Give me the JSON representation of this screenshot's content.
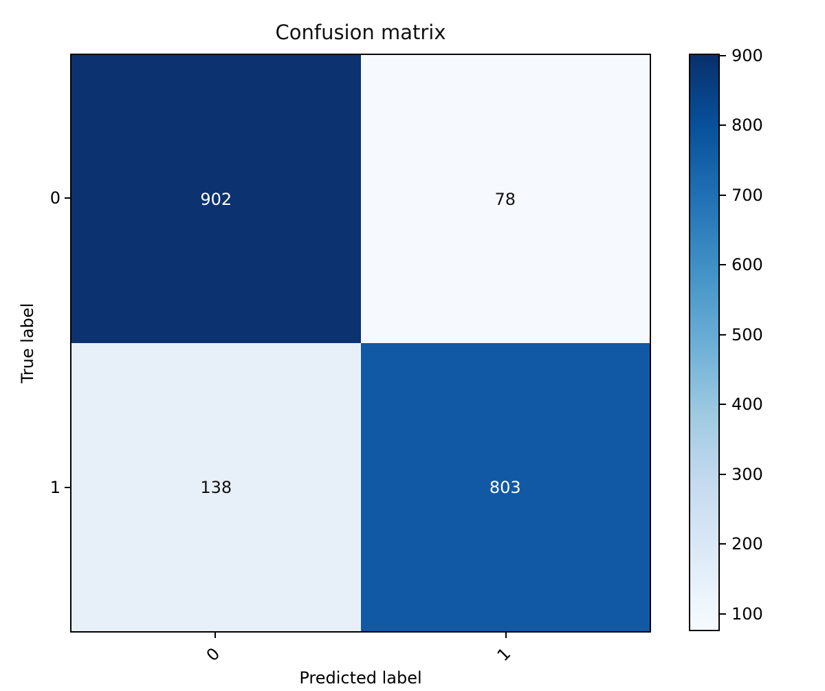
{
  "chart_data": {
    "type": "heatmap",
    "title": "Confusion matrix",
    "xlabel": "Predicted label",
    "ylabel": "True label",
    "x_tick_labels": [
      "0",
      "1"
    ],
    "y_tick_labels": [
      "0",
      "1"
    ],
    "matrix": [
      [
        902,
        78
      ],
      [
        138,
        803
      ]
    ],
    "cell_colors": [
      [
        "#0d3270",
        "#f6fafe"
      ],
      [
        "#e7f0f9",
        "#1159a5"
      ]
    ],
    "cell_text_colors": [
      [
        "#ffffff",
        "#111111"
      ],
      [
        "#111111",
        "#ffffff"
      ]
    ],
    "colormap": "Blues",
    "vmin": 78,
    "vmax": 902,
    "colorbar": {
      "tick_values": [
        900,
        800,
        700,
        600,
        500,
        400,
        300,
        200,
        100
      ],
      "gradient_stops_top_to_bottom": [
        "#08306b",
        "#08519c",
        "#2171b5",
        "#4292c6",
        "#6baed6",
        "#9ecae1",
        "#c6dbef",
        "#deebf7",
        "#f7fbff"
      ]
    },
    "layout": {
      "grid": false,
      "x_tick_rotation_deg": 45,
      "background": "#ffffff"
    }
  }
}
